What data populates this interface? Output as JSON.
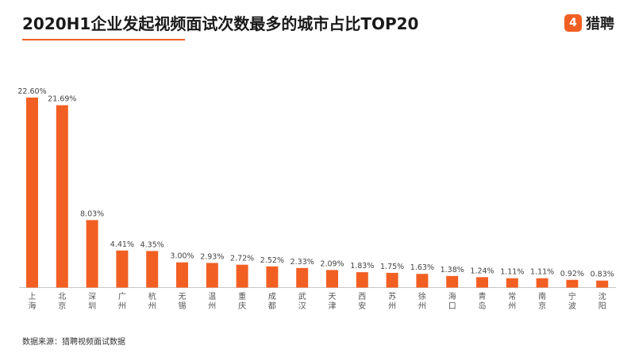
{
  "header": {
    "title": "2020H1企业发起视频面试次数最多的城市占比TOP20",
    "brand_icon_glyph": "4",
    "brand_name": "猎聘"
  },
  "footer": {
    "source": "数据来源：猎聘视频面试数据"
  },
  "colors": {
    "accent": "#f25f23",
    "axis": "#c8c8c8"
  },
  "chart_data": {
    "type": "bar",
    "title": "2020H1企业发起视频面试次数最多的城市占比TOP20",
    "xlabel": "",
    "ylabel": "",
    "unit": "%",
    "ylim": [
      0,
      22.6
    ],
    "grid": false,
    "categories": [
      "上海",
      "北京",
      "深圳",
      "广州",
      "杭州",
      "无锡",
      "温州",
      "重庆",
      "成都",
      "武汉",
      "天津",
      "西安",
      "苏州",
      "徐州",
      "海口",
      "青岛",
      "常州",
      "南京",
      "宁波",
      "沈阳"
    ],
    "values": [
      22.6,
      21.69,
      8.03,
      4.41,
      4.35,
      3.0,
      2.93,
      2.72,
      2.52,
      2.33,
      2.09,
      1.83,
      1.75,
      1.63,
      1.38,
      1.24,
      1.11,
      1.11,
      0.92,
      0.83
    ],
    "value_labels": [
      "22.60%",
      "21.69%",
      "8.03%",
      "4.41%",
      "4.35%",
      "3.00%",
      "2.93%",
      "2.72%",
      "2.52%",
      "2.33%",
      "2.09%",
      "1.83%",
      "1.75%",
      "1.63%",
      "1.38%",
      "1.24%",
      "1.11%",
      "1.11%",
      "0.92%",
      "0.83%"
    ]
  }
}
